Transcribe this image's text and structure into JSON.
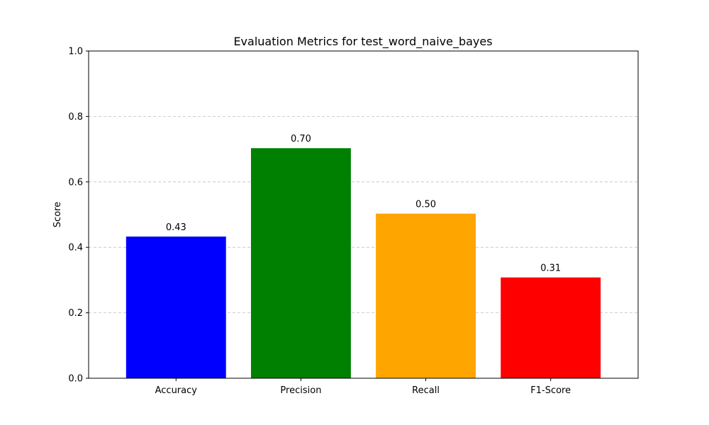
{
  "chart_data": {
    "type": "bar",
    "title": "Evaluation Metrics for test_word_naive_bayes",
    "xlabel": "",
    "ylabel": "Score",
    "ylim": [
      0,
      1.0
    ],
    "yticks": [
      "0.0",
      "0.2",
      "0.4",
      "0.6",
      "0.8",
      "1.0"
    ],
    "ytick_values": [
      0,
      0.2,
      0.4,
      0.6,
      0.8,
      1.0
    ],
    "grid": "y-dashed",
    "categories": [
      "Accuracy",
      "Precision",
      "Recall",
      "F1-Score"
    ],
    "values": [
      0.433,
      0.703,
      0.503,
      0.308
    ],
    "data_labels": [
      "0.43",
      "0.70",
      "0.50",
      "0.31"
    ],
    "colors": [
      "#0000ff",
      "#008000",
      "#ffa500",
      "#ff0000"
    ]
  }
}
